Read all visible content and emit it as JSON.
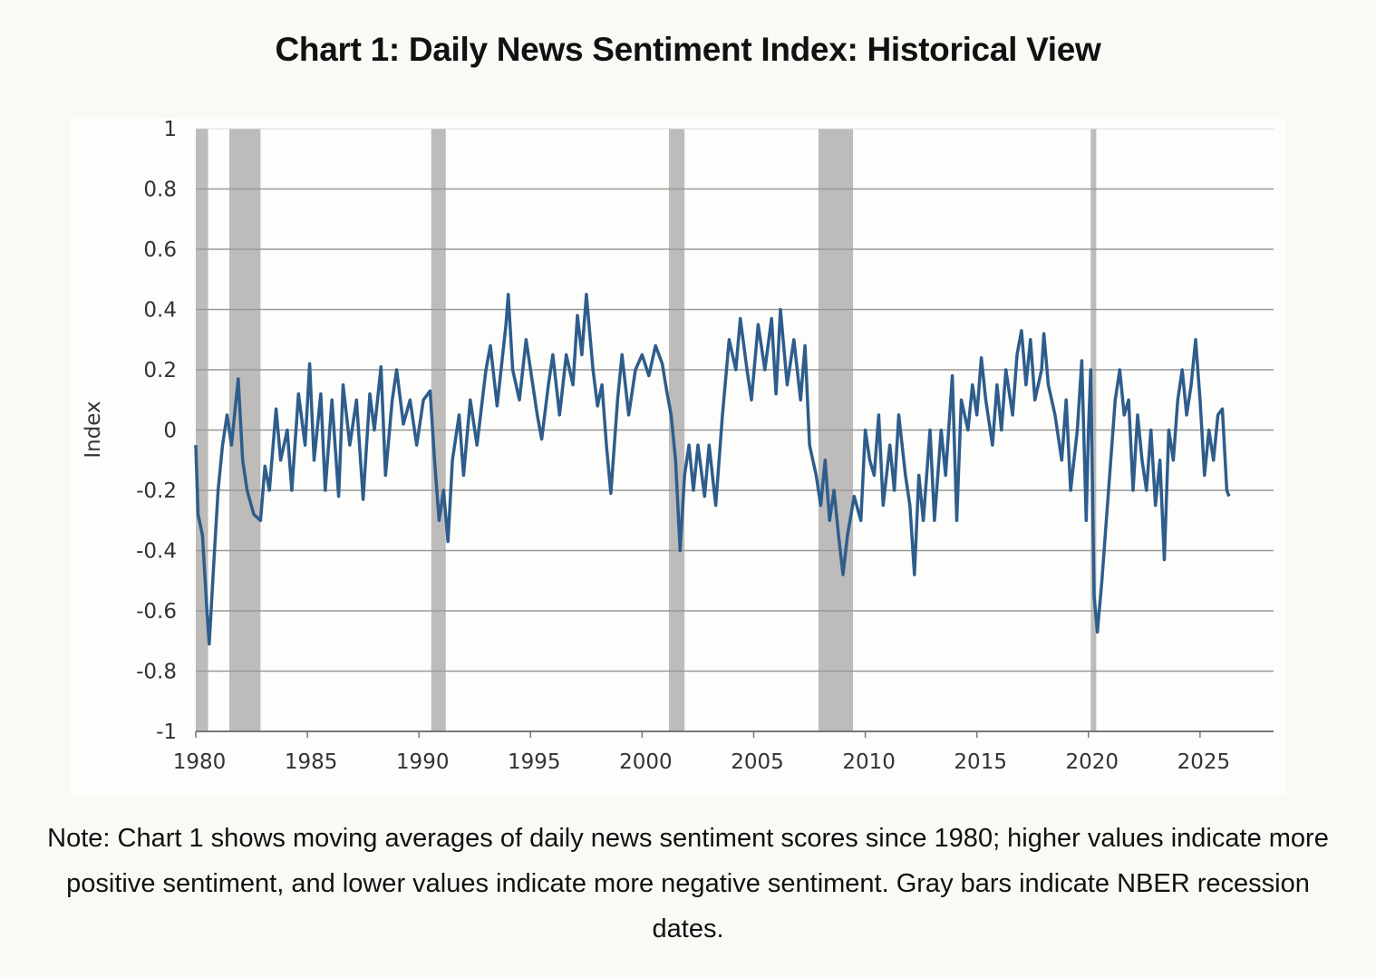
{
  "chart_data": {
    "type": "line",
    "title": "Chart 1: Daily News Sentiment Index: Historical View",
    "xlabel": "",
    "ylabel": "Index",
    "xlim": [
      1980,
      2028
    ],
    "ylim": [
      -1,
      1
    ],
    "grid": true,
    "legend": "none",
    "xticks": [
      1980,
      1985,
      1990,
      1995,
      2000,
      2005,
      2010,
      2015,
      2020,
      2025
    ],
    "xtick_labels": [
      "1980",
      "1985",
      "1990",
      "1995",
      "2000",
      "2005",
      "2010",
      "2015",
      "2020",
      "2025"
    ],
    "yticks": [
      1,
      0.8,
      0.6,
      0.4,
      0.2,
      0,
      -0.2,
      -0.4,
      -0.6,
      -0.8,
      -1
    ],
    "ytick_labels": [
      "1",
      "0.8",
      "0.6",
      "0.4",
      "0.2",
      "0",
      "-0.2",
      "-0.4",
      "-0.6",
      "-0.8",
      "-1"
    ],
    "line_color": "#2e5d8c",
    "recession_color": "#bdbcba",
    "recessions": [
      [
        1980.0,
        1980.55
      ],
      [
        1981.5,
        1982.9
      ],
      [
        1990.55,
        1991.2
      ],
      [
        2001.2,
        2001.9
      ],
      [
        2007.9,
        2009.45
      ],
      [
        2020.1,
        2020.35
      ]
    ],
    "series": [
      {
        "name": "Daily News Sentiment Index",
        "x": [
          1980.0,
          1980.1,
          1980.3,
          1980.5,
          1980.6,
          1980.8,
          1981.0,
          1981.2,
          1981.4,
          1981.6,
          1981.9,
          1982.1,
          1982.3,
          1982.6,
          1982.9,
          1983.1,
          1983.3,
          1983.6,
          1983.8,
          1984.1,
          1984.3,
          1984.6,
          1984.9,
          1985.1,
          1985.3,
          1985.6,
          1985.8,
          1986.1,
          1986.4,
          1986.6,
          1986.9,
          1987.2,
          1987.5,
          1987.8,
          1988.0,
          1988.3,
          1988.5,
          1988.8,
          1989.0,
          1989.3,
          1989.6,
          1989.9,
          1990.2,
          1990.5,
          1990.7,
          1990.9,
          1991.1,
          1991.3,
          1991.5,
          1991.8,
          1992.0,
          1992.3,
          1992.6,
          1993.0,
          1993.2,
          1993.5,
          1993.9,
          1994.0,
          1994.2,
          1994.5,
          1994.8,
          1995.0,
          1995.3,
          1995.5,
          1995.8,
          1996.0,
          1996.3,
          1996.6,
          1996.9,
          1997.1,
          1997.3,
          1997.5,
          1997.8,
          1998.0,
          1998.2,
          1998.4,
          1998.6,
          1998.9,
          1999.1,
          1999.4,
          1999.7,
          2000.0,
          2000.3,
          2000.6,
          2000.9,
          2001.1,
          2001.3,
          2001.5,
          2001.7,
          2001.9,
          2002.1,
          2002.3,
          2002.5,
          2002.8,
          2003.0,
          2003.3,
          2003.6,
          2003.9,
          2004.2,
          2004.4,
          2004.7,
          2004.9,
          2005.2,
          2005.5,
          2005.8,
          2006.0,
          2006.2,
          2006.5,
          2006.8,
          2007.1,
          2007.3,
          2007.5,
          2007.8,
          2008.0,
          2008.2,
          2008.4,
          2008.6,
          2008.8,
          2009.0,
          2009.2,
          2009.5,
          2009.8,
          2010.0,
          2010.2,
          2010.4,
          2010.6,
          2010.8,
          2011.1,
          2011.3,
          2011.5,
          2011.8,
          2012.0,
          2012.2,
          2012.4,
          2012.6,
          2012.9,
          2013.1,
          2013.4,
          2013.6,
          2013.9,
          2014.1,
          2014.3,
          2014.6,
          2014.8,
          2015.0,
          2015.2,
          2015.4,
          2015.7,
          2015.9,
          2016.1,
          2016.3,
          2016.6,
          2016.8,
          2017.0,
          2017.2,
          2017.4,
          2017.6,
          2017.9,
          2018.0,
          2018.2,
          2018.5,
          2018.8,
          2019.0,
          2019.2,
          2019.5,
          2019.7,
          2019.9,
          2020.0,
          2020.1,
          2020.25,
          2020.4,
          2020.6,
          2020.8,
          2021.0,
          2021.2,
          2021.4,
          2021.6,
          2021.8,
          2022.0,
          2022.2,
          2022.4,
          2022.6,
          2022.8,
          2023.0,
          2023.2,
          2023.4,
          2023.6,
          2023.8,
          2024.0,
          2024.2,
          2024.4,
          2024.6,
          2024.8,
          2025.0,
          2025.2,
          2025.4,
          2025.6,
          2025.8,
          2026.0,
          2026.2,
          2026.3
        ],
        "values": [
          -0.05,
          -0.28,
          -0.35,
          -0.6,
          -0.71,
          -0.45,
          -0.2,
          -0.05,
          0.05,
          -0.05,
          0.17,
          -0.1,
          -0.2,
          -0.28,
          -0.3,
          -0.12,
          -0.2,
          0.07,
          -0.1,
          0.0,
          -0.2,
          0.12,
          -0.05,
          0.22,
          -0.1,
          0.12,
          -0.2,
          0.1,
          -0.22,
          0.15,
          -0.05,
          0.1,
          -0.23,
          0.12,
          0.0,
          0.21,
          -0.15,
          0.1,
          0.2,
          0.02,
          0.1,
          -0.05,
          0.1,
          0.13,
          -0.1,
          -0.3,
          -0.2,
          -0.37,
          -0.1,
          0.05,
          -0.15,
          0.1,
          -0.05,
          0.2,
          0.28,
          0.08,
          0.35,
          0.45,
          0.2,
          0.1,
          0.3,
          0.2,
          0.05,
          -0.03,
          0.15,
          0.25,
          0.05,
          0.25,
          0.15,
          0.38,
          0.25,
          0.45,
          0.2,
          0.08,
          0.15,
          -0.05,
          -0.21,
          0.1,
          0.25,
          0.05,
          0.2,
          0.25,
          0.18,
          0.28,
          0.22,
          0.13,
          0.05,
          -0.1,
          -0.4,
          -0.15,
          -0.05,
          -0.2,
          -0.05,
          -0.22,
          -0.05,
          -0.25,
          0.05,
          0.3,
          0.2,
          0.37,
          0.2,
          0.1,
          0.35,
          0.2,
          0.37,
          0.12,
          0.4,
          0.15,
          0.3,
          0.1,
          0.28,
          -0.05,
          -0.15,
          -0.25,
          -0.1,
          -0.3,
          -0.2,
          -0.35,
          -0.48,
          -0.35,
          -0.22,
          -0.3,
          0.0,
          -0.1,
          -0.15,
          0.05,
          -0.25,
          -0.05,
          -0.2,
          0.05,
          -0.15,
          -0.25,
          -0.48,
          -0.15,
          -0.3,
          0.0,
          -0.3,
          0.0,
          -0.15,
          0.18,
          -0.3,
          0.1,
          0.0,
          0.15,
          0.05,
          0.24,
          0.1,
          -0.05,
          0.15,
          0.0,
          0.2,
          0.05,
          0.25,
          0.33,
          0.15,
          0.3,
          0.1,
          0.2,
          0.32,
          0.15,
          0.05,
          -0.1,
          0.1,
          -0.2,
          0.0,
          0.23,
          -0.3,
          0.0,
          0.2,
          -0.55,
          -0.67,
          -0.5,
          -0.3,
          -0.1,
          0.1,
          0.2,
          0.05,
          0.1,
          -0.2,
          0.05,
          -0.1,
          -0.2,
          0.0,
          -0.25,
          -0.1,
          -0.43,
          0.0,
          -0.1,
          0.1,
          0.2,
          0.05,
          0.15,
          0.3,
          0.1,
          -0.15,
          0.0,
          -0.1,
          0.05,
          0.07,
          -0.2,
          -0.22
        ]
      }
    ],
    "note": "Note: Chart 1 shows moving averages of daily news sentiment scores since 1980; higher values indicate more positive sentiment, and lower values indicate more negative sentiment. Gray bars indicate NBER recession dates."
  }
}
